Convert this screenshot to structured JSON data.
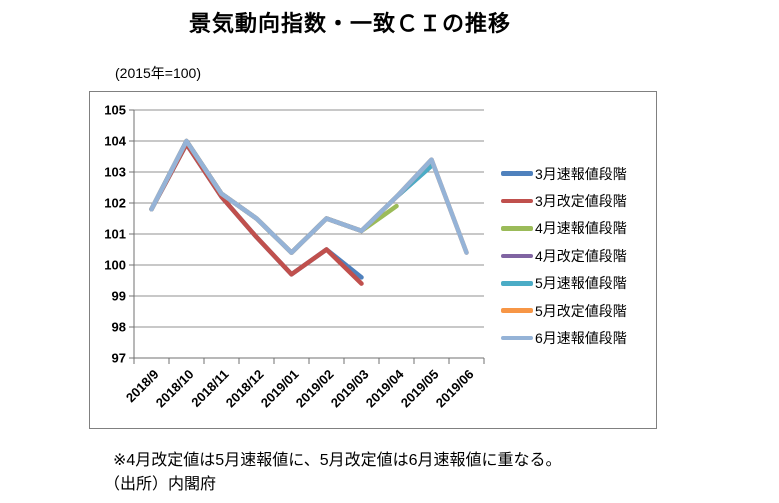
{
  "chart_data": {
    "type": "line",
    "title": "景気動向指数・一致ＣＩの推移",
    "subtitle": "(2015年=100)",
    "categories": [
      "2018/9",
      "2018/10",
      "2018/11",
      "2018/12",
      "2019/01",
      "2019/02",
      "2019/03",
      "2019/04",
      "2019/05",
      "2019/06"
    ],
    "ylim": [
      97,
      105
    ],
    "yticks": [
      97,
      98,
      99,
      100,
      101,
      102,
      103,
      104,
      105
    ],
    "grid": true,
    "legend_position": "right",
    "series": [
      {
        "name": "3月速報値段階",
        "color": "#4F81BD",
        "values": [
          101.8,
          103.9,
          102.2,
          100.9,
          99.7,
          100.5,
          99.6,
          null,
          null,
          null
        ]
      },
      {
        "name": "3月改定値段階",
        "color": "#C0504D",
        "values": [
          101.8,
          103.9,
          102.2,
          100.9,
          99.7,
          100.5,
          99.4,
          null,
          null,
          null
        ]
      },
      {
        "name": "4月速報値段階",
        "color": "#9BBB59",
        "values": [
          101.8,
          104.0,
          102.3,
          101.5,
          100.4,
          101.5,
          101.1,
          101.9,
          null,
          null
        ]
      },
      {
        "name": "4月改定値段階",
        "color": "#8064A2",
        "values": [
          101.8,
          104.0,
          102.3,
          101.5,
          100.4,
          101.5,
          101.1,
          102.2,
          103.2,
          null
        ]
      },
      {
        "name": "5月速報値段階",
        "color": "#4BACC6",
        "values": [
          101.8,
          104.0,
          102.3,
          101.5,
          100.4,
          101.5,
          101.1,
          102.2,
          103.2,
          null
        ]
      },
      {
        "name": "5月改定値段階",
        "color": "#F79646",
        "values": [
          101.8,
          104.0,
          102.3,
          101.5,
          100.4,
          101.5,
          101.1,
          102.2,
          103.4,
          100.4
        ]
      },
      {
        "name": "6月速報値段階",
        "color": "#95B3D7",
        "values": [
          101.8,
          104.0,
          102.3,
          101.5,
          100.4,
          101.5,
          101.1,
          102.2,
          103.4,
          100.4
        ]
      }
    ]
  },
  "footnotes": {
    "note": "※4月改定値は5月速報値に、5月改定値は6月速報値に重なる。",
    "source": "（出所）内閣府"
  }
}
